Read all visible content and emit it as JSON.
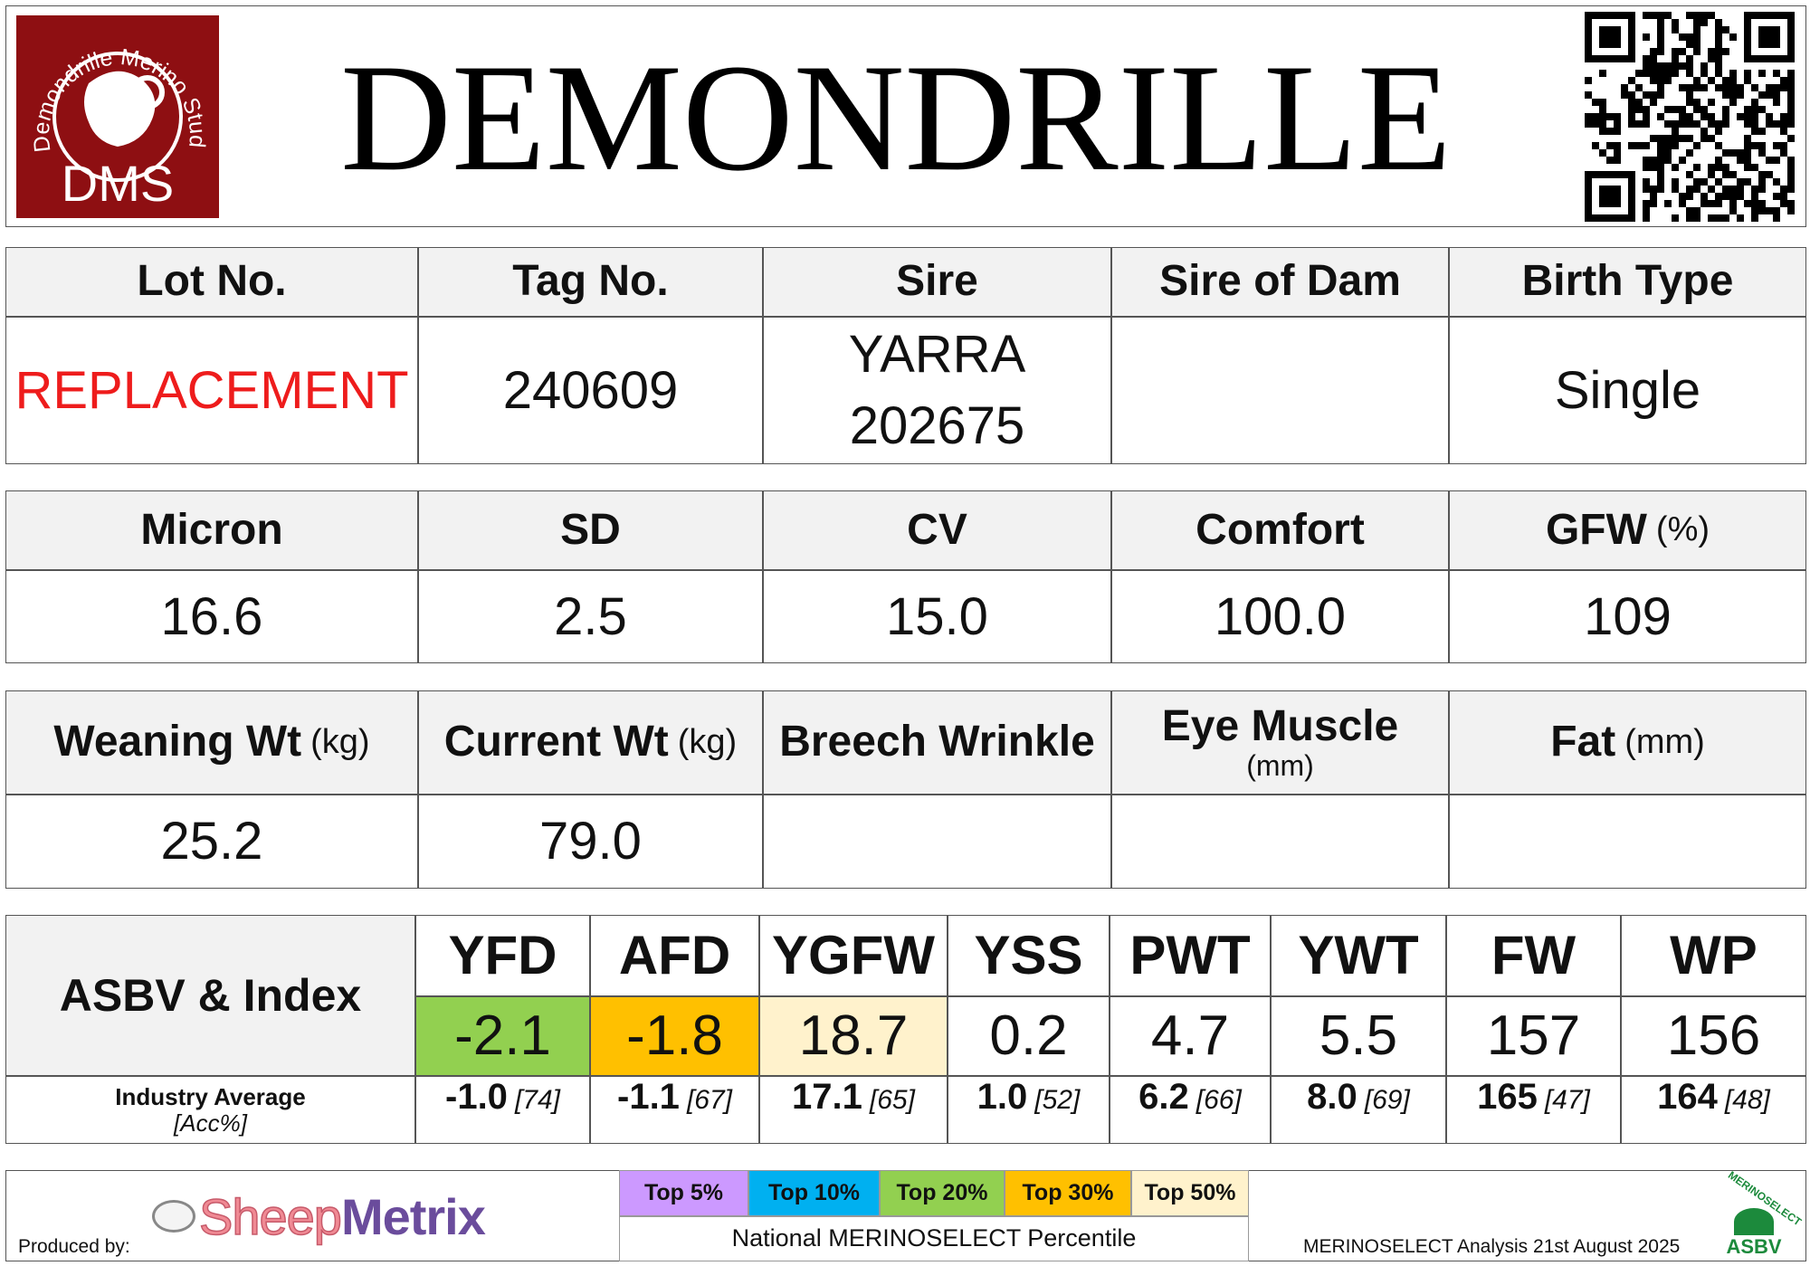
{
  "header": {
    "logo_text": "Demondrille Merino Stud",
    "logo_initials": "DMS",
    "title": "DEMONDRILLE"
  },
  "table_1": {
    "headers": [
      "Lot No.",
      "Tag No.",
      "Sire",
      "Sire of Dam",
      "Birth Type"
    ],
    "rows": [
      [
        "REPLACEMENT",
        "240609",
        [
          "YARRA",
          "202675"
        ],
        null,
        "Single"
      ]
    ]
  },
  "table_2": {
    "headers": [
      "Micron",
      "SD",
      "CV",
      "Comfort",
      {
        "label": "GFW",
        "unit": "(%)"
      }
    ],
    "rows": [
      [
        "16.6",
        "2.5",
        "15.0",
        "100.0",
        "109"
      ]
    ]
  },
  "table_3": {
    "headers": [
      {
        "label": "Weaning Wt",
        "unit": "(kg)"
      },
      {
        "label": "Current Wt",
        "unit": "(kg)"
      },
      "Breech Wrinkle",
      {
        "label": "Eye Muscle",
        "unit": "(mm)"
      },
      {
        "label": "Fat",
        "unit": "(mm)"
      }
    ],
    "rows": [
      [
        "25.2",
        "79.0",
        null,
        null,
        null
      ]
    ]
  },
  "asbv": {
    "label": "ASBV & Index",
    "average_label": "Industry Average",
    "accuracy_label": "[Acc%]",
    "traits": [
      {
        "name": "YFD",
        "value": "-2.1",
        "color": "#92d050",
        "average": "-1.0",
        "accuracy": "[74]"
      },
      {
        "name": "AFD",
        "value": "-1.8",
        "color": "#ffc000",
        "average": "-1.1",
        "accuracy": "[67]"
      },
      {
        "name": "YGFW",
        "value": "18.7",
        "color": "#fff2cc",
        "average": "17.1",
        "accuracy": "[65]"
      },
      {
        "name": "YSS",
        "value": "0.2",
        "average": "1.0",
        "accuracy": "[52]"
      },
      {
        "name": "PWT",
        "value": "4.7",
        "average": "6.2",
        "accuracy": "[66]"
      },
      {
        "name": "YWT",
        "value": "5.5",
        "average": "8.0",
        "accuracy": "[69]"
      },
      {
        "name": "FW",
        "value": "157",
        "average": "165",
        "accuracy": "[47]"
      },
      {
        "name": "WP",
        "value": "156",
        "average": "164",
        "accuracy": "[48]"
      }
    ]
  },
  "footer": {
    "produced_by": "Produced by:",
    "brand": [
      "Sheep",
      "Metrix"
    ],
    "percentile_bands": [
      {
        "label": "Top 5%",
        "color": "#cc99ff"
      },
      {
        "label": "Top 10%",
        "color": "#00b0f0"
      },
      {
        "label": "Top 20%",
        "color": "#92d050"
      },
      {
        "label": "Top 30%",
        "color": "#ffc000"
      },
      {
        "label": "Top 50%",
        "color": "#fff2cc"
      }
    ],
    "percentile_caption": "National MERINOSELECT Percentile",
    "analysis": "MERINOSELECT Analysis 21st August 2025",
    "badge": [
      "MERINOSELECT",
      "ASBV"
    ]
  }
}
